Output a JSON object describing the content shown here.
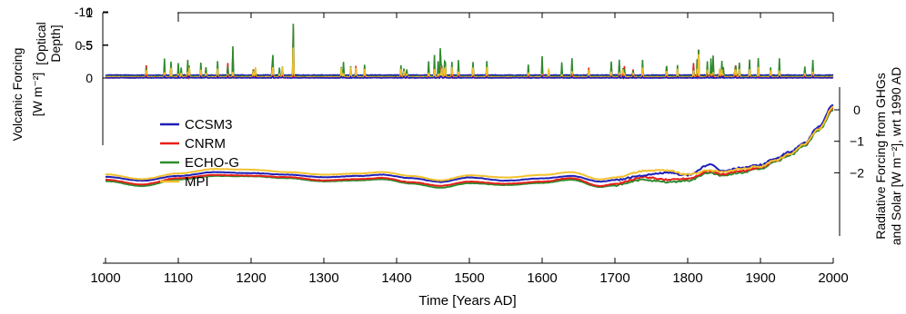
{
  "chart_data": {
    "type": "line",
    "xlabel": "Time [Years AD]",
    "xlim": [
      1000,
      2000
    ],
    "x_ticks": [
      "1000",
      "1100",
      "1200",
      "1300",
      "1400",
      "1500",
      "1600",
      "1700",
      "1800",
      "1900",
      "2000"
    ],
    "top_axis": {
      "ylabel_lines": [
        "[Optical",
        "Depth]"
      ],
      "ticks": [
        "1",
        "0.5",
        "0"
      ],
      "ylim": [
        0,
        1
      ]
    },
    "left_axis": {
      "ylabel_lines": [
        "Volcanic Forcing",
        "[W m⁻²]"
      ],
      "ticks": [
        "0",
        "-5",
        "-10"
      ],
      "ylim": [
        -10,
        0
      ]
    },
    "right_axis": {
      "ylabel_lines": [
        "Radiative Forcing from GHGs",
        "and Solar [W m⁻²], wrt 1990 AD"
      ],
      "ticks": [
        "0",
        "−1",
        "−2"
      ],
      "ylim": [
        -2.6,
        0.3
      ]
    },
    "series": [
      {
        "name": "CCSM3",
        "color": "#1f1fb8"
      },
      {
        "name": "CNRM",
        "color": "#e8201a"
      },
      {
        "name": "ECHO-G",
        "color": "#2e8b2e"
      },
      {
        "name": "MPI",
        "color": "#f2c12e"
      }
    ],
    "optical_depth_peaks": [
      {
        "x": 1175,
        "series": "CNRM",
        "value": 0.38
      },
      {
        "x": 1258,
        "series": "CNRM",
        "value": 0.72
      },
      {
        "x": 1460,
        "series": "CNRM",
        "value": 0.12
      },
      {
        "x": 1815,
        "series": "CNRM",
        "value": 0.4
      },
      {
        "x": 1835,
        "series": "CNRM",
        "value": 0.2
      },
      {
        "x": 1885,
        "series": "CNRM",
        "value": 0.15
      },
      {
        "x": 1600,
        "series": "CNRM",
        "value": 0.12
      },
      {
        "x": 1641,
        "series": "CNRM",
        "value": 0.1
      },
      {
        "x": 1100,
        "series": "CNRM",
        "value": 0.1
      },
      {
        "x": 1168,
        "series": "CNRM",
        "value": 0.2
      },
      {
        "x": 1808,
        "series": "CNRM",
        "value": 0.2
      }
    ],
    "volcanic_dips": [
      {
        "x": 1175,
        "series": "ECHO-G",
        "value": -4.8
      },
      {
        "x": 1258,
        "series": "ECHO-G",
        "value": -8.2
      },
      {
        "x": 1258,
        "series": "MPI",
        "value": -4.6
      },
      {
        "x": 1230,
        "series": "ECHO-G",
        "value": -3.5
      },
      {
        "x": 1452,
        "series": "ECHO-G",
        "value": -3.5
      },
      {
        "x": 1460,
        "series": "ECHO-G",
        "value": -4.5
      },
      {
        "x": 1600,
        "series": "ECHO-G",
        "value": -3.3
      },
      {
        "x": 1641,
        "series": "ECHO-G",
        "value": -3.0
      },
      {
        "x": 1815,
        "series": "ECHO-G",
        "value": -4.3
      },
      {
        "x": 1835,
        "series": "ECHO-G",
        "value": -3.4
      },
      {
        "x": 1885,
        "series": "ECHO-G",
        "value": -2.8
      },
      {
        "x": 1815,
        "series": "MPI",
        "value": -3.6
      },
      {
        "x": 1695,
        "series": "ECHO-G",
        "value": -2.5
      }
    ],
    "ghg_solar_forcing": {
      "x": [
        1000,
        1050,
        1100,
        1150,
        1200,
        1250,
        1300,
        1350,
        1380,
        1420,
        1460,
        1500,
        1550,
        1600,
        1640,
        1680,
        1700,
        1740,
        1770,
        1800,
        1830,
        1850,
        1870,
        1900,
        1920,
        1940,
        1960,
        1980,
        2000
      ],
      "CCSM3": [
        -2.13,
        -2.25,
        -2.1,
        -1.98,
        -2.01,
        -2.06,
        -2.14,
        -2.1,
        -2.06,
        -2.17,
        -2.29,
        -2.15,
        -2.25,
        -2.18,
        -2.1,
        -2.28,
        -2.23,
        -2.08,
        -2.0,
        -2.07,
        -1.75,
        -1.95,
        -1.85,
        -1.75,
        -1.55,
        -1.35,
        -1.05,
        -0.55,
        0.15
      ],
      "CNRM": [
        -2.22,
        -2.37,
        -2.17,
        -2.07,
        -2.09,
        -2.14,
        -2.24,
        -2.2,
        -2.16,
        -2.3,
        -2.41,
        -2.28,
        -2.35,
        -2.28,
        -2.17,
        -2.42,
        -2.35,
        -2.14,
        -2.22,
        -2.18,
        -1.95,
        -2.05,
        -1.95,
        -1.85,
        -1.62,
        -1.4,
        -1.1,
        -0.6,
        0.05
      ],
      "ECHO-G": [
        -2.26,
        -2.42,
        -2.21,
        -2.1,
        -2.11,
        -2.17,
        -2.27,
        -2.24,
        -2.2,
        -2.34,
        -2.47,
        -2.33,
        -2.39,
        -2.32,
        -2.22,
        -2.45,
        -2.4,
        -2.22,
        -2.3,
        -2.25,
        -2.0,
        -2.1,
        -2.0,
        -1.88,
        -1.65,
        -1.45,
        -1.15,
        -0.65,
        0.0
      ],
      "MPI": [
        -2.05,
        -2.2,
        -2.02,
        -1.88,
        -1.9,
        -1.98,
        -2.06,
        -2.02,
        -1.98,
        -2.1,
        -2.24,
        -2.08,
        -2.15,
        -2.07,
        -1.98,
        -2.21,
        -2.15,
        -1.95,
        -1.92,
        -2.05,
        -1.92,
        -1.98,
        -1.88,
        -1.8,
        -1.6,
        -1.42,
        -1.1,
        -0.62,
        0.08
      ]
    }
  }
}
